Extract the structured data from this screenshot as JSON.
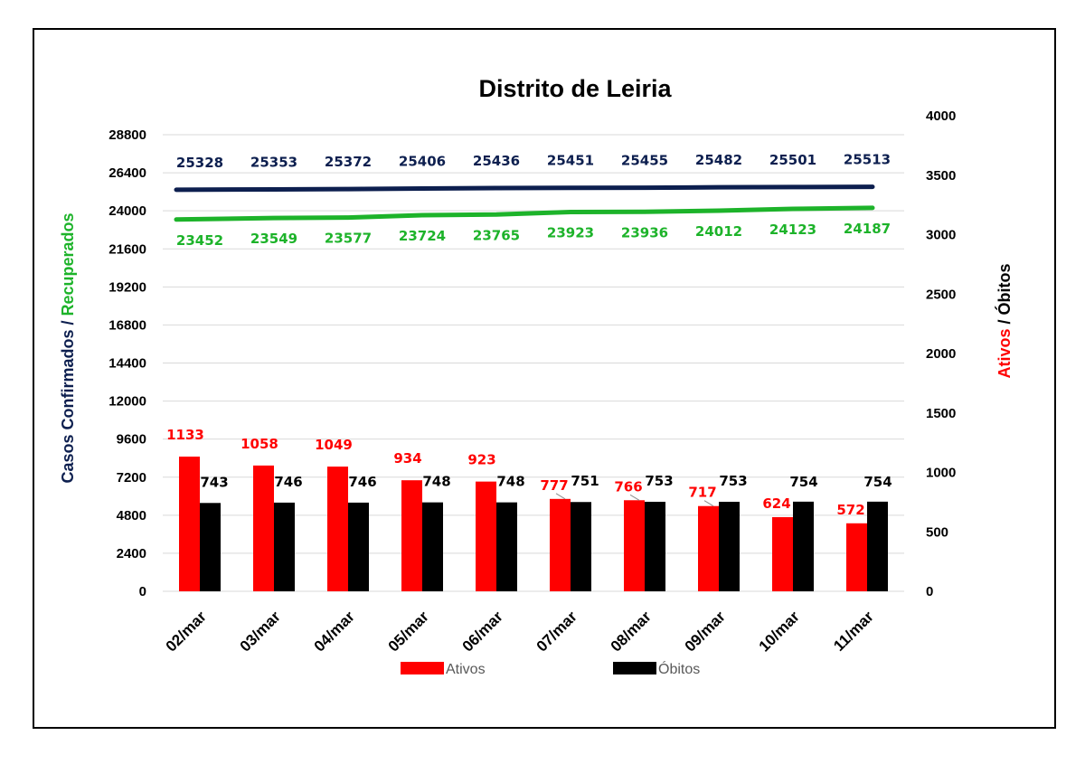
{
  "chart_data": {
    "type": "bar",
    "title": "Distrito de Leiria",
    "categories": [
      "02/mar",
      "03/mar",
      "04/mar",
      "05/mar",
      "06/mar",
      "07/mar",
      "08/mar",
      "09/mar",
      "10/mar",
      "11/mar"
    ],
    "left_axis": {
      "title_part1": "Casos Confirmados",
      "title_sep": " / ",
      "title_part2": "Recuperados",
      "ylim": [
        0,
        28800
      ],
      "ticks": [
        0,
        2400,
        4800,
        7200,
        9600,
        12000,
        14400,
        16800,
        19200,
        21600,
        24000,
        26400,
        28800
      ]
    },
    "right_axis": {
      "title_part1": "Ativos",
      "title_sep": " / ",
      "title_part2": "Óbitos",
      "ylim": [
        0,
        4000
      ],
      "ticks": [
        0,
        500,
        1000,
        1500,
        2000,
        2500,
        3000,
        3500,
        4000
      ]
    },
    "lines": [
      {
        "name": "Casos Confirmados",
        "axis": "left",
        "color": "#0d1f4f",
        "values": [
          25328,
          25353,
          25372,
          25406,
          25436,
          25451,
          25455,
          25482,
          25501,
          25513
        ]
      },
      {
        "name": "Recuperados",
        "axis": "left",
        "color": "#1db32a",
        "values": [
          23452,
          23549,
          23577,
          23724,
          23765,
          23923,
          23936,
          24012,
          24123,
          24187
        ]
      }
    ],
    "bars": [
      {
        "name": "Ativos",
        "axis": "right",
        "color": "#ff0000",
        "values": [
          1133,
          1058,
          1049,
          934,
          923,
          777,
          766,
          717,
          624,
          572
        ]
      },
      {
        "name": "Óbitos",
        "axis": "right",
        "color": "#000000",
        "values": [
          743,
          746,
          746,
          748,
          748,
          751,
          753,
          753,
          754,
          754
        ]
      }
    ],
    "legend": {
      "placement": "bottom",
      "items": [
        {
          "label": "Ativos",
          "color": "#ff0000"
        },
        {
          "label": "Óbitos",
          "color": "#000000"
        }
      ]
    },
    "grid": true,
    "grid_color": "#d9d9d9"
  }
}
